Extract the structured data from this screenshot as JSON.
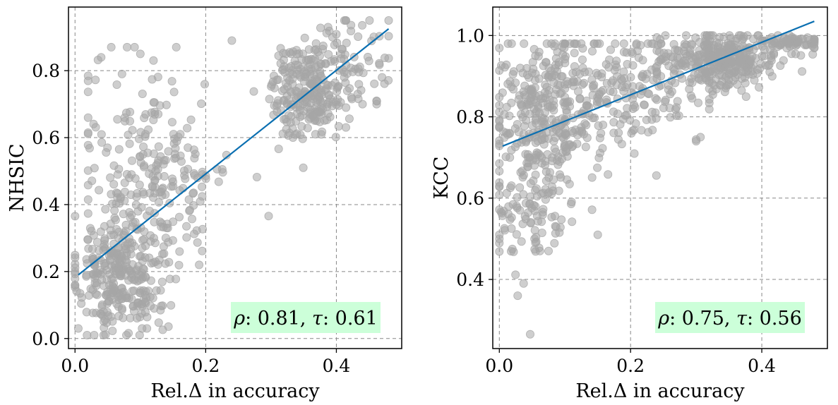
{
  "figure": {
    "colors": {
      "points": "#a6a6a6",
      "fit_line": "#0a6fb1",
      "grid": "#888888",
      "annotation_bg": "#ccffd9",
      "axes": "#000000"
    }
  },
  "chart_data": [
    {
      "type": "scatter",
      "xlabel": "Rel.Δ in accuracy",
      "ylabel": "NHSIC",
      "xlim": [
        -0.01,
        0.5
      ],
      "ylim": [
        -0.03,
        0.99
      ],
      "xticks": [
        0.0,
        0.2,
        0.4
      ],
      "xtick_labels": [
        "0.0",
        "0.2",
        "0.4"
      ],
      "yticks": [
        0.0,
        0.2,
        0.4,
        0.6,
        0.8
      ],
      "ytick_labels": [
        "0.0",
        "0.2",
        "0.4",
        "0.6",
        "0.8"
      ],
      "grid": true,
      "annotation": {
        "rho_label": "ρ",
        "rho_value": ": 0.81, ",
        "tau_label": "τ",
        "tau_value": ": 0.61",
        "position": "bottom-right"
      },
      "fit_line": {
        "x": [
          0.005,
          0.48
        ],
        "y": [
          0.19,
          0.925
        ]
      },
      "point_clusters": [
        {
          "n": 300,
          "x_mean": 0.07,
          "x_sd": 0.035,
          "x_min": 0.0,
          "x_max": 0.16,
          "y_mean": 0.19,
          "y_sd": 0.09,
          "y_min": 0.01,
          "y_max": 0.45
        },
        {
          "n": 230,
          "x_mean": 0.12,
          "x_sd": 0.06,
          "x_min": 0.02,
          "x_max": 0.3,
          "y_mean": 0.5,
          "y_sd": 0.15,
          "y_min": 0.15,
          "y_max": 0.87
        },
        {
          "n": 240,
          "x_mean": 0.355,
          "x_sd": 0.028,
          "x_min": 0.27,
          "x_max": 0.45,
          "y_mean": 0.74,
          "y_sd": 0.07,
          "y_min": 0.5,
          "y_max": 0.9
        },
        {
          "n": 70,
          "x_mean": 0.42,
          "x_sd": 0.035,
          "x_min": 0.36,
          "x_max": 0.48,
          "y_mean": 0.83,
          "y_sd": 0.07,
          "y_min": 0.7,
          "y_max": 0.95
        }
      ],
      "notable_points": [
        {
          "x": 0.48,
          "y": 0.95
        },
        {
          "x": 0.005,
          "y": 0.03
        },
        {
          "x": 0.04,
          "y": 0.84
        },
        {
          "x": 0.1,
          "y": 0.85
        },
        {
          "x": 0.155,
          "y": 0.87
        },
        {
          "x": 0.24,
          "y": 0.89
        },
        {
          "x": 0.47,
          "y": 0.78
        },
        {
          "x": 0.44,
          "y": 0.7
        },
        {
          "x": 0.11,
          "y": 0.03
        },
        {
          "x": 0.19,
          "y": 0.22
        }
      ]
    },
    {
      "type": "scatter",
      "xlabel": "Rel.Δ in accuracy",
      "ylabel": "KCC",
      "xlim": [
        -0.01,
        0.5
      ],
      "ylim": [
        0.23,
        1.07
      ],
      "xticks": [
        0.0,
        0.2,
        0.4
      ],
      "xtick_labels": [
        "0.0",
        "0.2",
        "0.4"
      ],
      "yticks": [
        0.4,
        0.6,
        0.8,
        1.0
      ],
      "ytick_labels": [
        "0.4",
        "0.6",
        "0.8",
        "1.0"
      ],
      "grid": true,
      "annotation": {
        "rho_label": "ρ",
        "rho_value": ": 0.75, ",
        "tau_label": "τ",
        "tau_value": ": 0.56",
        "position": "bottom-right"
      },
      "fit_line": {
        "x": [
          0.005,
          0.48
        ],
        "y": [
          0.728,
          1.035
        ]
      },
      "point_clusters": [
        {
          "n": 330,
          "x_mean": 0.07,
          "x_sd": 0.04,
          "x_min": 0.0,
          "x_max": 0.2,
          "y_mean": 0.8,
          "y_sd": 0.1,
          "y_min": 0.4,
          "y_max": 0.98
        },
        {
          "n": 90,
          "x_mean": 0.05,
          "x_sd": 0.03,
          "x_min": 0.0,
          "x_max": 0.15,
          "y_mean": 0.58,
          "y_sd": 0.07,
          "y_min": 0.35,
          "y_max": 0.7
        },
        {
          "n": 200,
          "x_mean": 0.2,
          "x_sd": 0.07,
          "x_min": 0.1,
          "x_max": 0.32,
          "y_mean": 0.87,
          "y_sd": 0.07,
          "y_min": 0.63,
          "y_max": 0.98
        },
        {
          "n": 320,
          "x_mean": 0.34,
          "x_sd": 0.045,
          "x_min": 0.24,
          "x_max": 0.48,
          "y_mean": 0.94,
          "y_sd": 0.035,
          "y_min": 0.8,
          "y_max": 1.0
        },
        {
          "n": 60,
          "x_mean": 0.44,
          "x_sd": 0.03,
          "x_min": 0.38,
          "x_max": 0.48,
          "y_mean": 0.985,
          "y_sd": 0.01,
          "y_min": 0.96,
          "y_max": 1.0
        }
      ],
      "notable_points": [
        {
          "x": 0.047,
          "y": 0.265
        },
        {
          "x": 0.028,
          "y": 0.36
        },
        {
          "x": 0.037,
          "y": 0.39
        },
        {
          "x": 0.0,
          "y": 0.51
        },
        {
          "x": 0.075,
          "y": 0.47
        },
        {
          "x": 0.15,
          "y": 0.51
        },
        {
          "x": 0.3,
          "y": 0.74
        },
        {
          "x": 0.48,
          "y": 0.99
        }
      ]
    }
  ]
}
